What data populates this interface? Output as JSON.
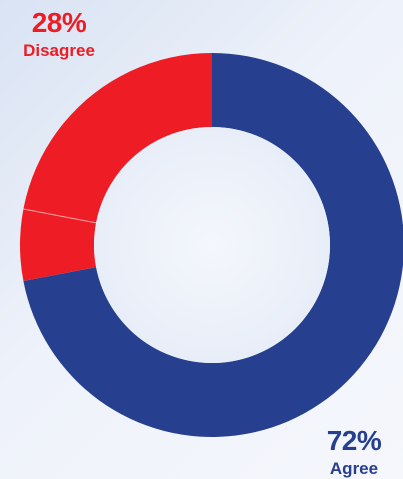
{
  "chart_data": {
    "type": "pie",
    "donut": true,
    "slices": [
      {
        "label": "Agree",
        "value": 72,
        "value_label": "72%",
        "color": "#263f8e"
      },
      {
        "label": "Disagree",
        "value": 28,
        "value_label": "28%",
        "color": "#ee1d25"
      }
    ],
    "disagree_sub_segments": [
      22,
      6
    ],
    "legend": "none"
  }
}
